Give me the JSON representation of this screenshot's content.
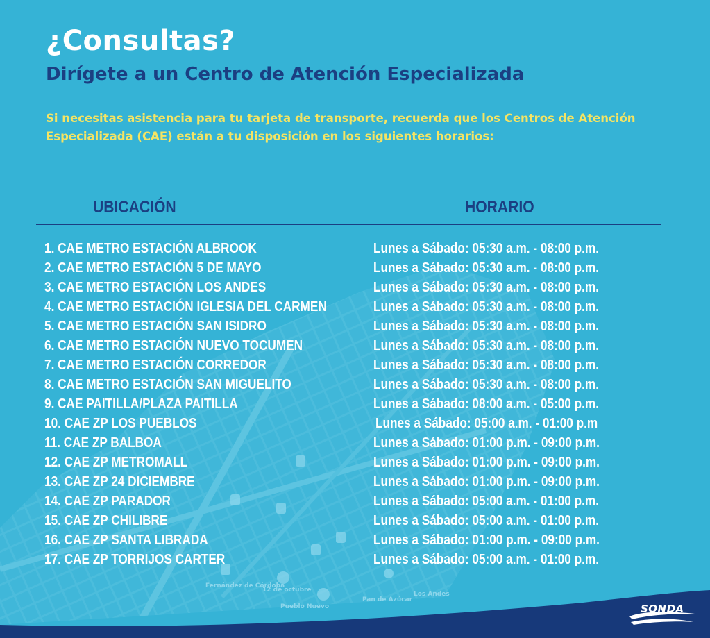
{
  "heading": {
    "title": "¿Consultas?",
    "subtitle": "Dirígete a un Centro de Atención Especializada",
    "intro_line1": "Si necesitas asistencia para tu tarjeta de transporte, recuerda que los Centros de Atención",
    "intro_line2": "Especializada (CAE) están a tu disposición en los siguientes horarios:"
  },
  "table": {
    "header_location": "UBICACIÓN",
    "header_hours": "HORARIO",
    "rows": [
      {
        "location": "1. CAE METRO ESTACIÓN ALBROOK",
        "hours": "Lunes a Sábado: 05:30 a.m. - 08:00 p.m."
      },
      {
        "location": "2. CAE METRO ESTACIÓN 5 DE MAYO",
        "hours": "Lunes a Sábado: 05:30 a.m. - 08:00 p.m."
      },
      {
        "location": "3. CAE METRO ESTACIÓN LOS ANDES",
        "hours": "Lunes a Sábado: 05:30 a.m. - 08:00 p.m."
      },
      {
        "location": "4. CAE METRO ESTACIÓN IGLESIA DEL CARMEN",
        "hours": "Lunes a Sábado: 05:30 a.m. - 08:00 p.m."
      },
      {
        "location": "5. CAE METRO ESTACIÓN SAN ISIDRO",
        "hours": "Lunes a Sábado: 05:30 a.m. - 08:00 p.m."
      },
      {
        "location": "6. CAE METRO ESTACIÓN NUEVO TOCUMEN",
        "hours": "Lunes a Sábado: 05:30 a.m. - 08:00 p.m."
      },
      {
        "location": "7. CAE METRO ESTACIÓN CORREDOR",
        "hours": "Lunes a Sábado: 05:30 a.m. - 08:00 p.m."
      },
      {
        "location": "8. CAE METRO ESTACIÓN SAN MIGUELITO",
        "hours": "Lunes a Sábado: 05:30 a.m. - 08:00 p.m."
      },
      {
        "location": "9. CAE PAITILLA/PLAZA PAITILLA",
        "hours": "Lunes a Sábado: 08:00 a.m. - 05:00 p.m."
      },
      {
        "location": "10. CAE ZP LOS PUEBLOS",
        "hours": "Lunes a Sábado: 05:00 a.m. - 01:00 p.m"
      },
      {
        "location": "11. CAE ZP BALBOA",
        "hours": "Lunes a Sábado: 01:00 p.m. - 09:00 p.m."
      },
      {
        "location": "12. CAE ZP METROMALL",
        "hours": "Lunes a Sábado: 01:00 p.m. - 09:00 p.m."
      },
      {
        "location": "13. CAE ZP 24 DICIEMBRE",
        "hours": "Lunes a Sábado: 01:00 p.m. - 09:00 p.m."
      },
      {
        "location": "14. CAE ZP PARADOR",
        "hours": "Lunes a Sábado: 05:00 a.m. - 01:00 p.m."
      },
      {
        "location": "15. CAE ZP CHILIBRE",
        "hours": "Lunes a Sábado: 05:00 a.m. - 01:00 p.m."
      },
      {
        "location": "16. CAE ZP SANTA LIBRADA",
        "hours": "Lunes a Sábado: 01:00 p.m. - 09:00 p.m."
      },
      {
        "location": "17. CAE ZP TORRIJOS CARTER",
        "hours": "Lunes a Sábado: 05:00 a.m. - 01:00 p.m."
      }
    ]
  },
  "map_labels": [
    "Fernández de Córdoba",
    "12 de octubre",
    "Pueblo Nuevo",
    "Pan de Azúcar",
    "Los Andes"
  ],
  "logo": {
    "text": "SONDA"
  },
  "colors": {
    "background": "#35b3d6",
    "title": "#ffffff",
    "subtitle": "#1b3f82",
    "intro": "#f5e463",
    "footer": "#17397a"
  }
}
